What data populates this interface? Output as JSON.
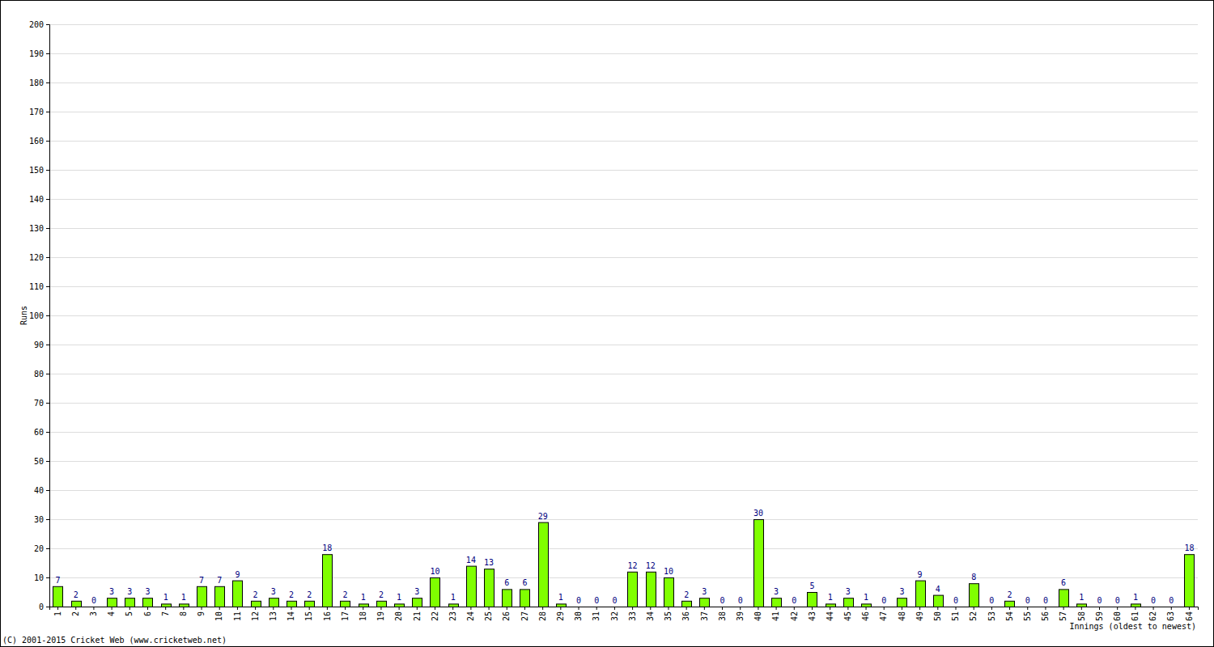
{
  "chart_data": {
    "type": "bar",
    "categories": [
      "1",
      "2",
      "3",
      "4",
      "5",
      "6",
      "7",
      "8",
      "9",
      "10",
      "11",
      "12",
      "13",
      "14",
      "15",
      "16",
      "17",
      "18",
      "19",
      "20",
      "21",
      "22",
      "23",
      "24",
      "25",
      "26",
      "27",
      "28",
      "29",
      "30",
      "31",
      "32",
      "33",
      "34",
      "35",
      "36",
      "37",
      "38",
      "39",
      "40",
      "41",
      "42",
      "43",
      "44",
      "45",
      "46",
      "47",
      "48",
      "49",
      "50",
      "51",
      "52",
      "53",
      "54",
      "55",
      "56",
      "57",
      "58",
      "59",
      "60",
      "61",
      "62",
      "63",
      "64"
    ],
    "values": [
      7,
      2,
      0,
      3,
      3,
      3,
      1,
      1,
      7,
      7,
      9,
      2,
      3,
      2,
      2,
      18,
      2,
      1,
      2,
      1,
      3,
      10,
      1,
      14,
      13,
      6,
      6,
      29,
      1,
      0,
      0,
      0,
      12,
      12,
      10,
      2,
      3,
      0,
      0,
      30,
      3,
      0,
      5,
      1,
      3,
      1,
      0,
      3,
      9,
      4,
      0,
      8,
      0,
      2,
      0,
      0,
      6,
      1,
      0,
      0,
      1,
      0,
      0,
      18
    ],
    "color": "#80ff00",
    "ylim": [
      0,
      200
    ],
    "yticks": [
      0,
      10,
      20,
      30,
      40,
      50,
      60,
      70,
      80,
      90,
      100,
      110,
      120,
      130,
      140,
      150,
      160,
      170,
      180,
      190,
      200
    ],
    "grid": true,
    "data_labels": true,
    "x_label": "Innings (oldest to newest)",
    "y_label": "Runs",
    "annotations": [
      "(C) 2001-2015 Cricket Web (www.cricketweb.net)"
    ]
  }
}
